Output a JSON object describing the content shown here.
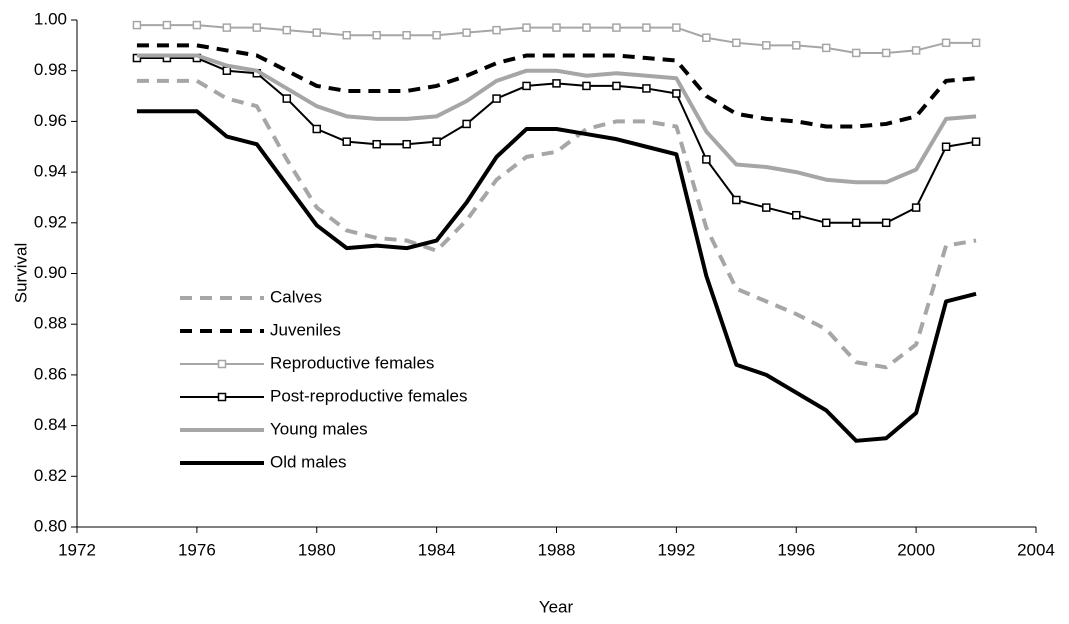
{
  "chart_data": {
    "type": "line",
    "x_label": "Year",
    "y_label": "Survival",
    "x": [
      1974,
      1975,
      1976,
      1977,
      1978,
      1979,
      1980,
      1981,
      1982,
      1983,
      1984,
      1985,
      1986,
      1987,
      1988,
      1989,
      1990,
      1991,
      1992,
      1993,
      1994,
      1995,
      1996,
      1997,
      1998,
      1999,
      2000,
      2001,
      2002
    ],
    "xlim": [
      1972,
      2004
    ],
    "xticks": [
      1972,
      1976,
      1980,
      1984,
      1988,
      1992,
      1996,
      2000,
      2004
    ],
    "ylim": [
      0.8,
      1.0
    ],
    "yticks": [
      {
        "value": 0.8,
        "label": "0.80"
      },
      0.82,
      0.84,
      0.86,
      0.88,
      {
        "value": 0.9,
        "label": "0.90"
      },
      0.92,
      0.94,
      0.96,
      0.98,
      {
        "value": 1.0,
        "label": "1.00"
      }
    ],
    "legend": "left",
    "series": [
      {
        "name": "Calves",
        "color": "#a6a6a6",
        "width": 4,
        "dash": true,
        "values": [
          0.976,
          0.976,
          0.976,
          0.969,
          0.966,
          0.945,
          0.926,
          0.917,
          0.914,
          0.913,
          0.909,
          0.921,
          0.937,
          0.946,
          0.948,
          0.957,
          0.96,
          0.96,
          0.958,
          0.918,
          0.894,
          0.889,
          0.884,
          0.878,
          0.865,
          0.863,
          0.872,
          0.911,
          0.913
        ]
      },
      {
        "name": "Juveniles",
        "color": "#000000",
        "width": 4,
        "dash": true,
        "values": [
          0.99,
          0.99,
          0.99,
          0.988,
          0.986,
          0.98,
          0.974,
          0.972,
          0.972,
          0.972,
          0.974,
          0.978,
          0.983,
          0.986,
          0.986,
          0.986,
          0.986,
          0.985,
          0.984,
          0.97,
          0.963,
          0.961,
          0.96,
          0.958,
          0.958,
          0.959,
          0.962,
          0.976,
          0.977
        ]
      },
      {
        "name": "Reproductive females",
        "color": "#a6a6a6",
        "width": 2,
        "marker": "square",
        "values": [
          0.998,
          0.998,
          0.998,
          0.997,
          0.997,
          0.996,
          0.995,
          0.994,
          0.994,
          0.994,
          0.994,
          0.995,
          0.996,
          0.997,
          0.997,
          0.997,
          0.997,
          0.997,
          0.997,
          0.993,
          0.991,
          0.99,
          0.99,
          0.989,
          0.987,
          0.987,
          0.988,
          0.991,
          0.991
        ]
      },
      {
        "name": "Post-reproductive females",
        "color": "#000000",
        "width": 2,
        "marker": "square",
        "values": [
          0.985,
          0.985,
          0.985,
          0.98,
          0.979,
          0.969,
          0.957,
          0.952,
          0.951,
          0.951,
          0.952,
          0.959,
          0.969,
          0.974,
          0.975,
          0.974,
          0.974,
          0.973,
          0.971,
          0.945,
          0.929,
          0.926,
          0.923,
          0.92,
          0.92,
          0.92,
          0.926,
          0.95,
          0.952
        ]
      },
      {
        "name": "Young males",
        "color": "#a6a6a6",
        "width": 4,
        "values": [
          0.986,
          0.986,
          0.986,
          0.982,
          0.98,
          0.973,
          0.966,
          0.962,
          0.961,
          0.961,
          0.962,
          0.968,
          0.976,
          0.98,
          0.98,
          0.978,
          0.979,
          0.978,
          0.977,
          0.956,
          0.943,
          0.942,
          0.94,
          0.937,
          0.936,
          0.936,
          0.941,
          0.961,
          0.962
        ]
      },
      {
        "name": "Old males",
        "color": "#000000",
        "width": 4,
        "values": [
          0.964,
          0.964,
          0.964,
          0.954,
          0.951,
          0.935,
          0.919,
          0.91,
          0.911,
          0.91,
          0.913,
          0.928,
          0.946,
          0.957,
          0.957,
          0.955,
          0.953,
          0.95,
          0.947,
          0.899,
          0.864,
          0.86,
          0.853,
          0.846,
          0.834,
          0.835,
          0.845,
          0.889,
          0.892
        ]
      }
    ]
  }
}
